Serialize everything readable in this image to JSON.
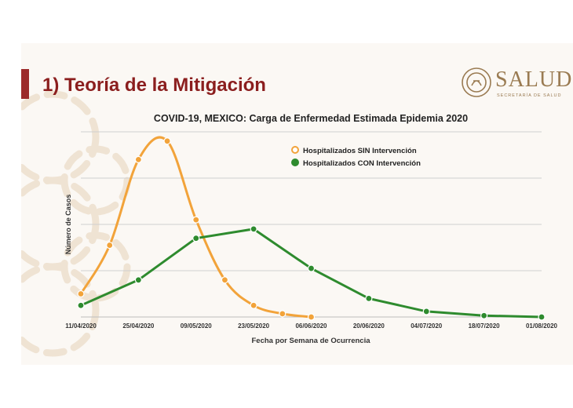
{
  "slide": {
    "heading": "1) Teoría de la Mitigación",
    "logo": {
      "word": "SALUD",
      "subtitle": "SECRETARÍA DE SALUD"
    }
  },
  "colors": {
    "heading": "#8b1e1e",
    "title_bar": "#9c2a2a",
    "logo": "#9a7b52",
    "series_sin": "#f2a33a",
    "series_con": "#2e8b2e",
    "grid": "#cfcfcf",
    "ornament": "#efe3d3"
  },
  "chart_data": {
    "type": "line",
    "title": "COVID-19, MEXICO: Carga de Enfermedad Estimada Epidemia 2020",
    "xlabel": "Fecha por Semana de Ocurrencia",
    "ylabel": "Número de Casos",
    "x_ticks": [
      "11/04/2020",
      "25/04/2020",
      "09/05/2020",
      "23/05/2020",
      "06/06/2020",
      "20/06/2020",
      "04/07/2020",
      "18/07/2020",
      "01/08/2020"
    ],
    "xlim": [
      "2020-04-11",
      "2020-08-01"
    ],
    "ylim": [
      0,
      4
    ],
    "y_tick_labels_shown": false,
    "grid": true,
    "legend_position": "top-right",
    "series": [
      {
        "name": "Hospitalizados SIN Intervención",
        "color": "#f2a33a",
        "smooth": true,
        "points": [
          {
            "x": "2020-04-11",
            "y": 0.5
          },
          {
            "x": "2020-04-18",
            "y": 1.55
          },
          {
            "x": "2020-04-25",
            "y": 3.4
          },
          {
            "x": "2020-05-02",
            "y": 3.8
          },
          {
            "x": "2020-05-09",
            "y": 2.1
          },
          {
            "x": "2020-05-16",
            "y": 0.8
          },
          {
            "x": "2020-05-23",
            "y": 0.25
          },
          {
            "x": "2020-05-30",
            "y": 0.07
          },
          {
            "x": "2020-06-06",
            "y": 0.0
          }
        ]
      },
      {
        "name": "Hospitalizados CON Intervención",
        "color": "#2e8b2e",
        "smooth": false,
        "points": [
          {
            "x": "2020-04-11",
            "y": 0.25
          },
          {
            "x": "2020-04-25",
            "y": 0.8
          },
          {
            "x": "2020-05-09",
            "y": 1.7
          },
          {
            "x": "2020-05-23",
            "y": 1.9
          },
          {
            "x": "2020-06-06",
            "y": 1.05
          },
          {
            "x": "2020-06-20",
            "y": 0.4
          },
          {
            "x": "2020-07-04",
            "y": 0.12
          },
          {
            "x": "2020-07-18",
            "y": 0.03
          },
          {
            "x": "2020-08-01",
            "y": 0.0
          }
        ]
      }
    ]
  }
}
